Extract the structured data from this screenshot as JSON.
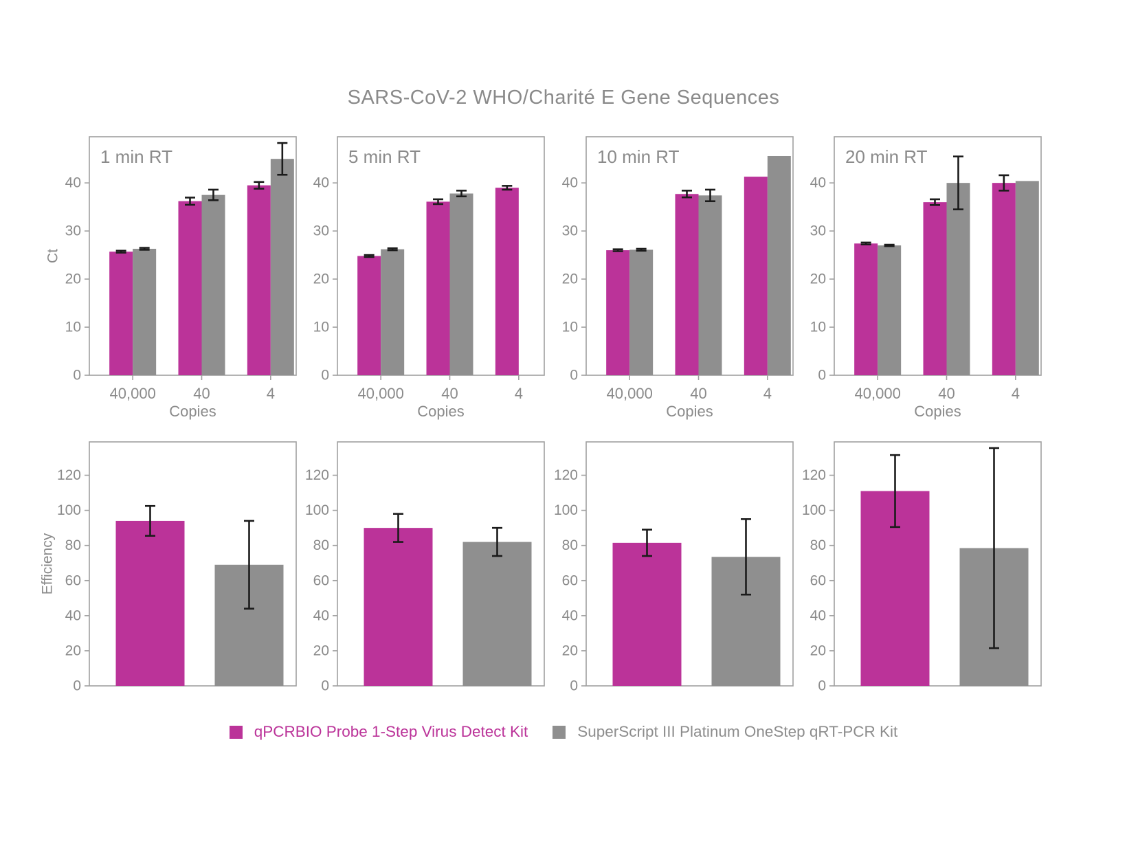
{
  "title": "SARS-CoV-2 WHO/Charité E Gene Sequences",
  "colors": {
    "series1": "#BB3399",
    "series2": "#8F8F8F",
    "text": "#8B8B8B",
    "frame": "#A0A0A0",
    "error": "#1B1B1B"
  },
  "legend": {
    "items": [
      {
        "label": "qPCRBIO Probe 1-Step Virus Detect Kit",
        "color": "#BB3399",
        "text_color": "#BB3399"
      },
      {
        "label": "SuperScript III Platinum OneStep qRT-PCR Kit",
        "color": "#8F8F8F",
        "text_color": "#8D8D8D"
      }
    ]
  },
  "chart_data": [
    {
      "id": "ct-chart-1-min-rt",
      "type": "bar",
      "variant": "ct",
      "panel_label": "1 min RT",
      "ylabel": "Ct",
      "xlabel": "Copies",
      "categories": [
        "40,000",
        "40",
        "4"
      ],
      "yticks": [
        0,
        10,
        20,
        30,
        40
      ],
      "ylim": [
        0,
        49.6
      ],
      "series": [
        {
          "name": "qPCRBIO Probe 1-Step Virus Detect Kit",
          "color_key": "series1",
          "values": [
            25.7,
            36.2,
            39.5
          ],
          "errors": [
            0.2,
            0.75,
            0.7
          ]
        },
        {
          "name": "SuperScript III Platinum OneStep qRT-PCR Kit",
          "color_key": "series2",
          "values": [
            26.3,
            37.5,
            45.0
          ],
          "errors": [
            0.2,
            1.1,
            3.3
          ]
        }
      ]
    },
    {
      "id": "ct-chart-5-min-rt",
      "type": "bar",
      "variant": "ct",
      "panel_label": "5 min RT",
      "ylabel": "",
      "xlabel": "Copies",
      "categories": [
        "40,000",
        "40",
        "4"
      ],
      "yticks": [
        0,
        10,
        20,
        30,
        40
      ],
      "ylim": [
        0,
        49.6
      ],
      "series": [
        {
          "name": "qPCRBIO Probe 1-Step Virus Detect Kit",
          "color_key": "series1",
          "values": [
            24.8,
            36.1,
            39.0
          ],
          "errors": [
            0.2,
            0.5,
            0.4
          ]
        },
        {
          "name": "SuperScript III Platinum OneStep qRT-PCR Kit",
          "color_key": "series2",
          "values": [
            26.2,
            37.8,
            null
          ],
          "errors": [
            0.2,
            0.6,
            null
          ]
        }
      ]
    },
    {
      "id": "ct-chart-10-min-rt",
      "type": "bar",
      "variant": "ct",
      "panel_label": "10 min RT",
      "ylabel": "",
      "xlabel": "Copies",
      "categories": [
        "40,000",
        "40",
        "4"
      ],
      "yticks": [
        0,
        10,
        20,
        30,
        40
      ],
      "ylim": [
        0,
        49.6
      ],
      "series": [
        {
          "name": "qPCRBIO Probe 1-Step Virus Detect Kit",
          "color_key": "series1",
          "values": [
            26.0,
            37.7,
            41.3
          ],
          "errors": [
            0.2,
            0.7,
            0
          ]
        },
        {
          "name": "SuperScript III Platinum OneStep qRT-PCR Kit",
          "color_key": "series2",
          "values": [
            26.1,
            37.4,
            45.6
          ],
          "errors": [
            0.2,
            1.2,
            0
          ]
        }
      ]
    },
    {
      "id": "ct-chart-20-min-rt",
      "type": "bar",
      "variant": "ct",
      "panel_label": "20 min RT",
      "ylabel": "",
      "xlabel": "Copies",
      "categories": [
        "40,000",
        "40",
        "4"
      ],
      "yticks": [
        0,
        10,
        20,
        30,
        40
      ],
      "ylim": [
        0,
        49.6
      ],
      "series": [
        {
          "name": "qPCRBIO Probe 1-Step Virus Detect Kit",
          "color_key": "series1",
          "values": [
            27.4,
            36.0,
            40.0
          ],
          "errors": [
            0.2,
            0.6,
            1.6
          ]
        },
        {
          "name": "SuperScript III Platinum OneStep qRT-PCR Kit",
          "color_key": "series2",
          "values": [
            27.0,
            40.0,
            40.4
          ],
          "errors": [
            0.15,
            5.5,
            0
          ]
        }
      ]
    },
    {
      "id": "efficiency-chart-1-min-rt",
      "type": "bar",
      "variant": "efficiency",
      "panel_label": "",
      "ylabel": "Efficiency",
      "xlabel": "",
      "categories": [],
      "yticks": [
        0,
        20,
        40,
        60,
        80,
        100,
        120
      ],
      "ylim": [
        0,
        139
      ],
      "series": [
        {
          "name": "qPCRBIO Probe 1-Step Virus Detect Kit",
          "color_key": "series1",
          "values": [
            94
          ],
          "errors": [
            8.5
          ]
        },
        {
          "name": "SuperScript III Platinum OneStep qRT-PCR Kit",
          "color_key": "series2",
          "values": [
            69
          ],
          "errors": [
            25
          ]
        }
      ]
    },
    {
      "id": "efficiency-chart-5-min-rt",
      "type": "bar",
      "variant": "efficiency",
      "panel_label": "",
      "ylabel": "",
      "xlabel": "",
      "categories": [],
      "yticks": [
        0,
        20,
        40,
        60,
        80,
        100,
        120
      ],
      "ylim": [
        0,
        139
      ],
      "series": [
        {
          "name": "qPCRBIO Probe 1-Step Virus Detect Kit",
          "color_key": "series1",
          "values": [
            90
          ],
          "errors": [
            8
          ]
        },
        {
          "name": "SuperScript III Platinum OneStep qRT-PCR Kit",
          "color_key": "series2",
          "values": [
            82
          ],
          "errors": [
            8
          ]
        }
      ]
    },
    {
      "id": "efficiency-chart-10-min-rt",
      "type": "bar",
      "variant": "efficiency",
      "panel_label": "",
      "ylabel": "",
      "xlabel": "",
      "categories": [],
      "yticks": [
        0,
        20,
        40,
        60,
        80,
        100,
        120
      ],
      "ylim": [
        0,
        139
      ],
      "series": [
        {
          "name": "qPCRBIO Probe 1-Step Virus Detect Kit",
          "color_key": "series1",
          "values": [
            81.5
          ],
          "errors": [
            7.5
          ]
        },
        {
          "name": "SuperScript III Platinum OneStep qRT-PCR Kit",
          "color_key": "series2",
          "values": [
            73.5
          ],
          "errors": [
            21.5
          ]
        }
      ]
    },
    {
      "id": "efficiency-chart-20-min-rt",
      "type": "bar",
      "variant": "efficiency",
      "panel_label": "",
      "ylabel": "",
      "xlabel": "",
      "categories": [],
      "yticks": [
        0,
        20,
        40,
        60,
        80,
        100,
        120
      ],
      "ylim": [
        0,
        139
      ],
      "series": [
        {
          "name": "qPCRBIO Probe 1-Step Virus Detect Kit",
          "color_key": "series1",
          "values": [
            111
          ],
          "errors": [
            20.5
          ]
        },
        {
          "name": "SuperScript III Platinum OneStep qRT-PCR Kit",
          "color_key": "series2",
          "values": [
            78.5
          ],
          "errors": [
            57
          ]
        }
      ]
    }
  ]
}
